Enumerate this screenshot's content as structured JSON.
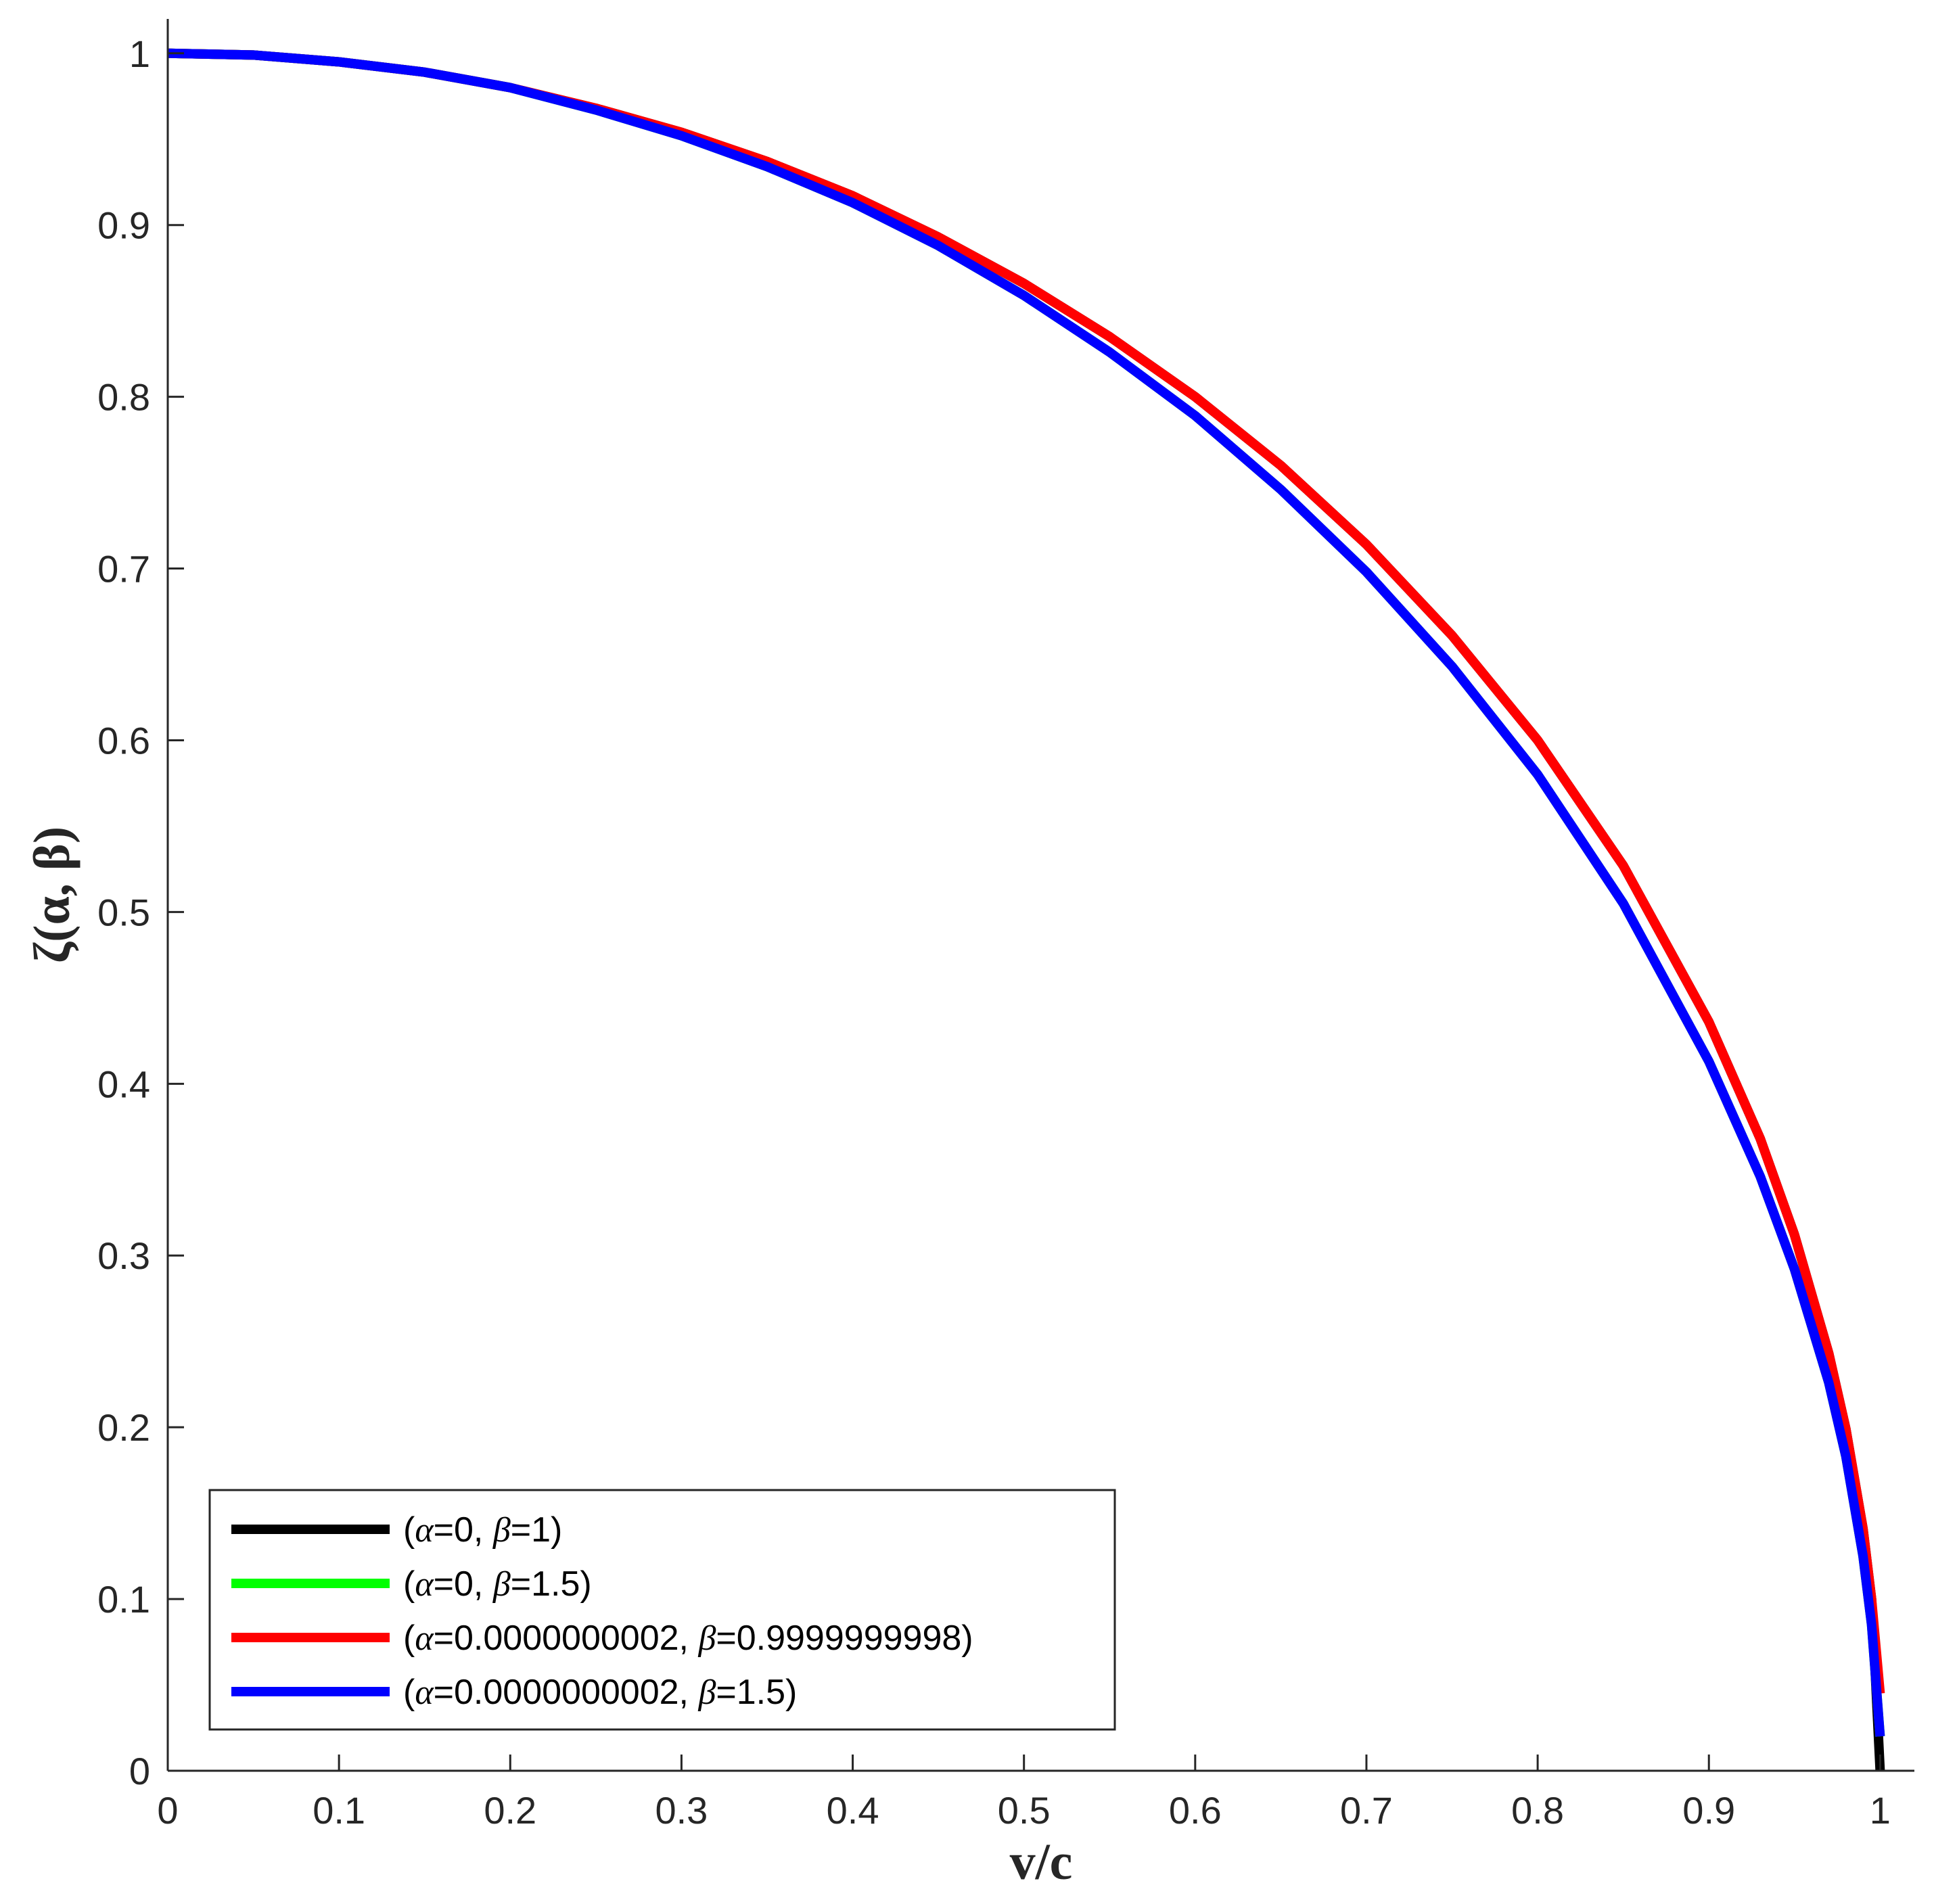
{
  "chart_data": {
    "type": "line",
    "title": "",
    "xlabel": "v/c",
    "ylabel": "ζ(α, β)",
    "xlim": [
      0,
      1.02
    ],
    "ylim": [
      0,
      1.02
    ],
    "xticks": [
      0,
      0.1,
      0.2,
      0.3,
      0.4,
      0.5,
      0.6,
      0.7,
      0.8,
      0.9,
      1
    ],
    "xtick_labels": [
      "0",
      "0.1",
      "0.2",
      "0.3",
      "0.4",
      "0.5",
      "0.6",
      "0.7",
      "0.8",
      "0.9",
      "1"
    ],
    "yticks": [
      0,
      0.1,
      0.2,
      0.3,
      0.4,
      0.5,
      0.6,
      0.7,
      0.8,
      0.9,
      1
    ],
    "ytick_labels": [
      "0",
      "0.1",
      "0.2",
      "0.3",
      "0.4",
      "0.5",
      "0.6",
      "0.7",
      "0.8",
      "0.9",
      "1"
    ],
    "grid": false,
    "legend_position": "bottom-left",
    "x": [
      0,
      0.05,
      0.1,
      0.15,
      0.2,
      0.25,
      0.3,
      0.35,
      0.4,
      0.45,
      0.5,
      0.55,
      0.6,
      0.65,
      0.7,
      0.75,
      0.8,
      0.85,
      0.9,
      0.93,
      0.95,
      0.97,
      0.98,
      0.99,
      0.995,
      1
    ],
    "series": [
      {
        "name": "(α=0, β=1)",
        "label_parts": [
          "(",
          "α",
          "=0, ",
          "β",
          "=1)"
        ],
        "color": "#000000",
        "y": [
          1,
          0.999,
          0.995,
          0.989,
          0.98,
          0.968,
          0.954,
          0.937,
          0.917,
          0.893,
          0.866,
          0.835,
          0.8,
          0.76,
          0.714,
          0.661,
          0.6,
          0.527,
          0.436,
          0.368,
          0.312,
          0.243,
          0.199,
          0.141,
          0.1,
          0
        ]
      },
      {
        "name": "(α=0, β=1.5)",
        "label_parts": [
          "(",
          "α",
          "=0, ",
          "β",
          "=1.5)"
        ],
        "color": "#00ff00",
        "y": [
          1,
          0.999,
          0.995,
          0.989,
          0.98,
          0.967,
          0.952,
          0.934,
          0.913,
          0.888,
          0.859,
          0.826,
          0.789,
          0.746,
          0.698,
          0.643,
          0.58,
          0.505,
          0.413,
          0.346,
          0.292,
          0.226,
          0.183,
          0.125,
          0.085,
          0.02
        ]
      },
      {
        "name": "(α=0.0000000002, β=0.9999999998)",
        "label_parts": [
          "(",
          "α",
          "=0.0000000002, ",
          "β",
          "=0.9999999998)"
        ],
        "color": "#ff0000",
        "y": [
          1,
          0.999,
          0.995,
          0.989,
          0.98,
          0.968,
          0.954,
          0.937,
          0.917,
          0.893,
          0.866,
          0.835,
          0.8,
          0.76,
          0.714,
          0.661,
          0.6,
          0.527,
          0.436,
          0.368,
          0.312,
          0.243,
          0.199,
          0.141,
          0.1,
          0.045
        ]
      },
      {
        "name": "(α=0.0000000002, β=1.5)",
        "label_parts": [
          "(",
          "α",
          "=0.0000000002, ",
          "β",
          "=1.5)"
        ],
        "color": "#0000ff",
        "y": [
          1,
          0.999,
          0.995,
          0.989,
          0.98,
          0.967,
          0.952,
          0.934,
          0.913,
          0.888,
          0.859,
          0.826,
          0.789,
          0.746,
          0.698,
          0.643,
          0.58,
          0.505,
          0.413,
          0.346,
          0.292,
          0.226,
          0.183,
          0.125,
          0.085,
          0.02
        ]
      }
    ]
  }
}
